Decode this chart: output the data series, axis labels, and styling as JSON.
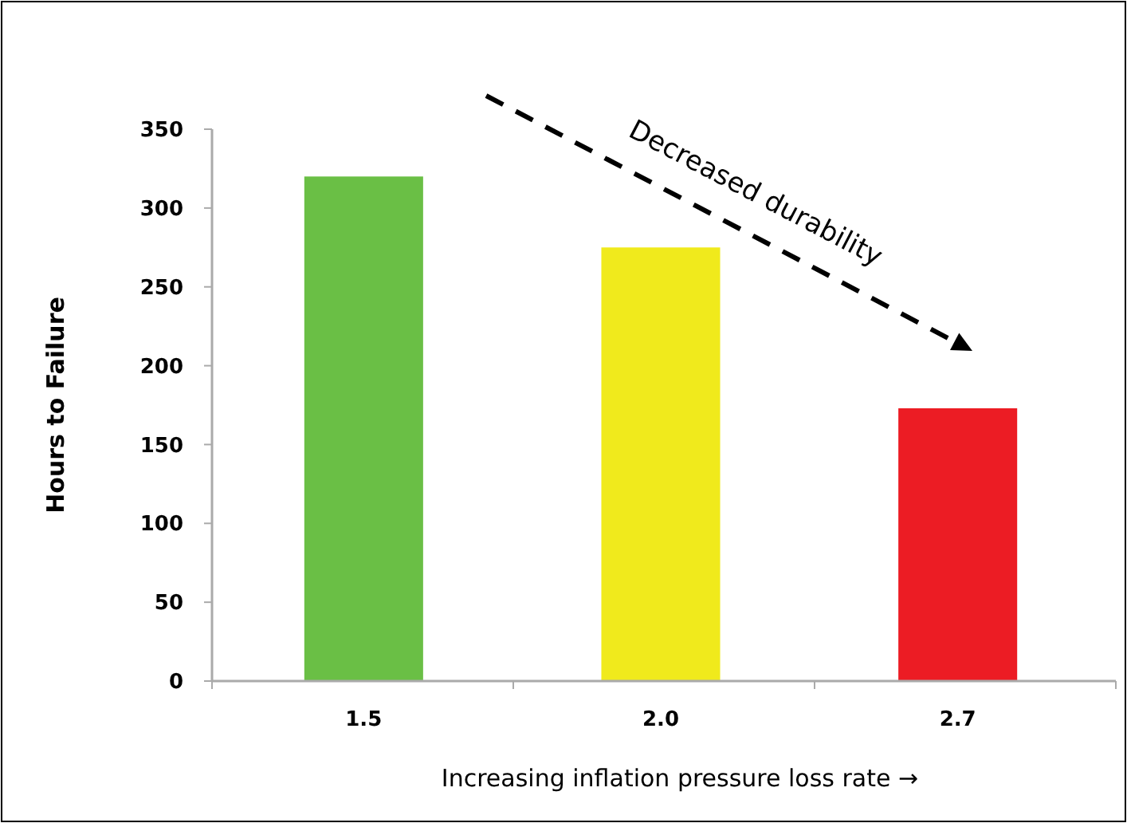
{
  "chart_data": {
    "type": "bar",
    "xlabel": "Increasing inflation pressure loss rate →",
    "ylabel": "Hours to Failure",
    "categories": [
      "1.5",
      "2.0",
      "2.7"
    ],
    "values": [
      320,
      275,
      173
    ],
    "colors": [
      "#6abf45",
      "#f0ea1c",
      "#ec1c24"
    ],
    "ylim": [
      0,
      350
    ],
    "yticks": [
      0,
      50,
      100,
      150,
      200,
      250,
      300,
      350
    ],
    "grid": false,
    "annotations": [
      "Decreased durability"
    ]
  }
}
